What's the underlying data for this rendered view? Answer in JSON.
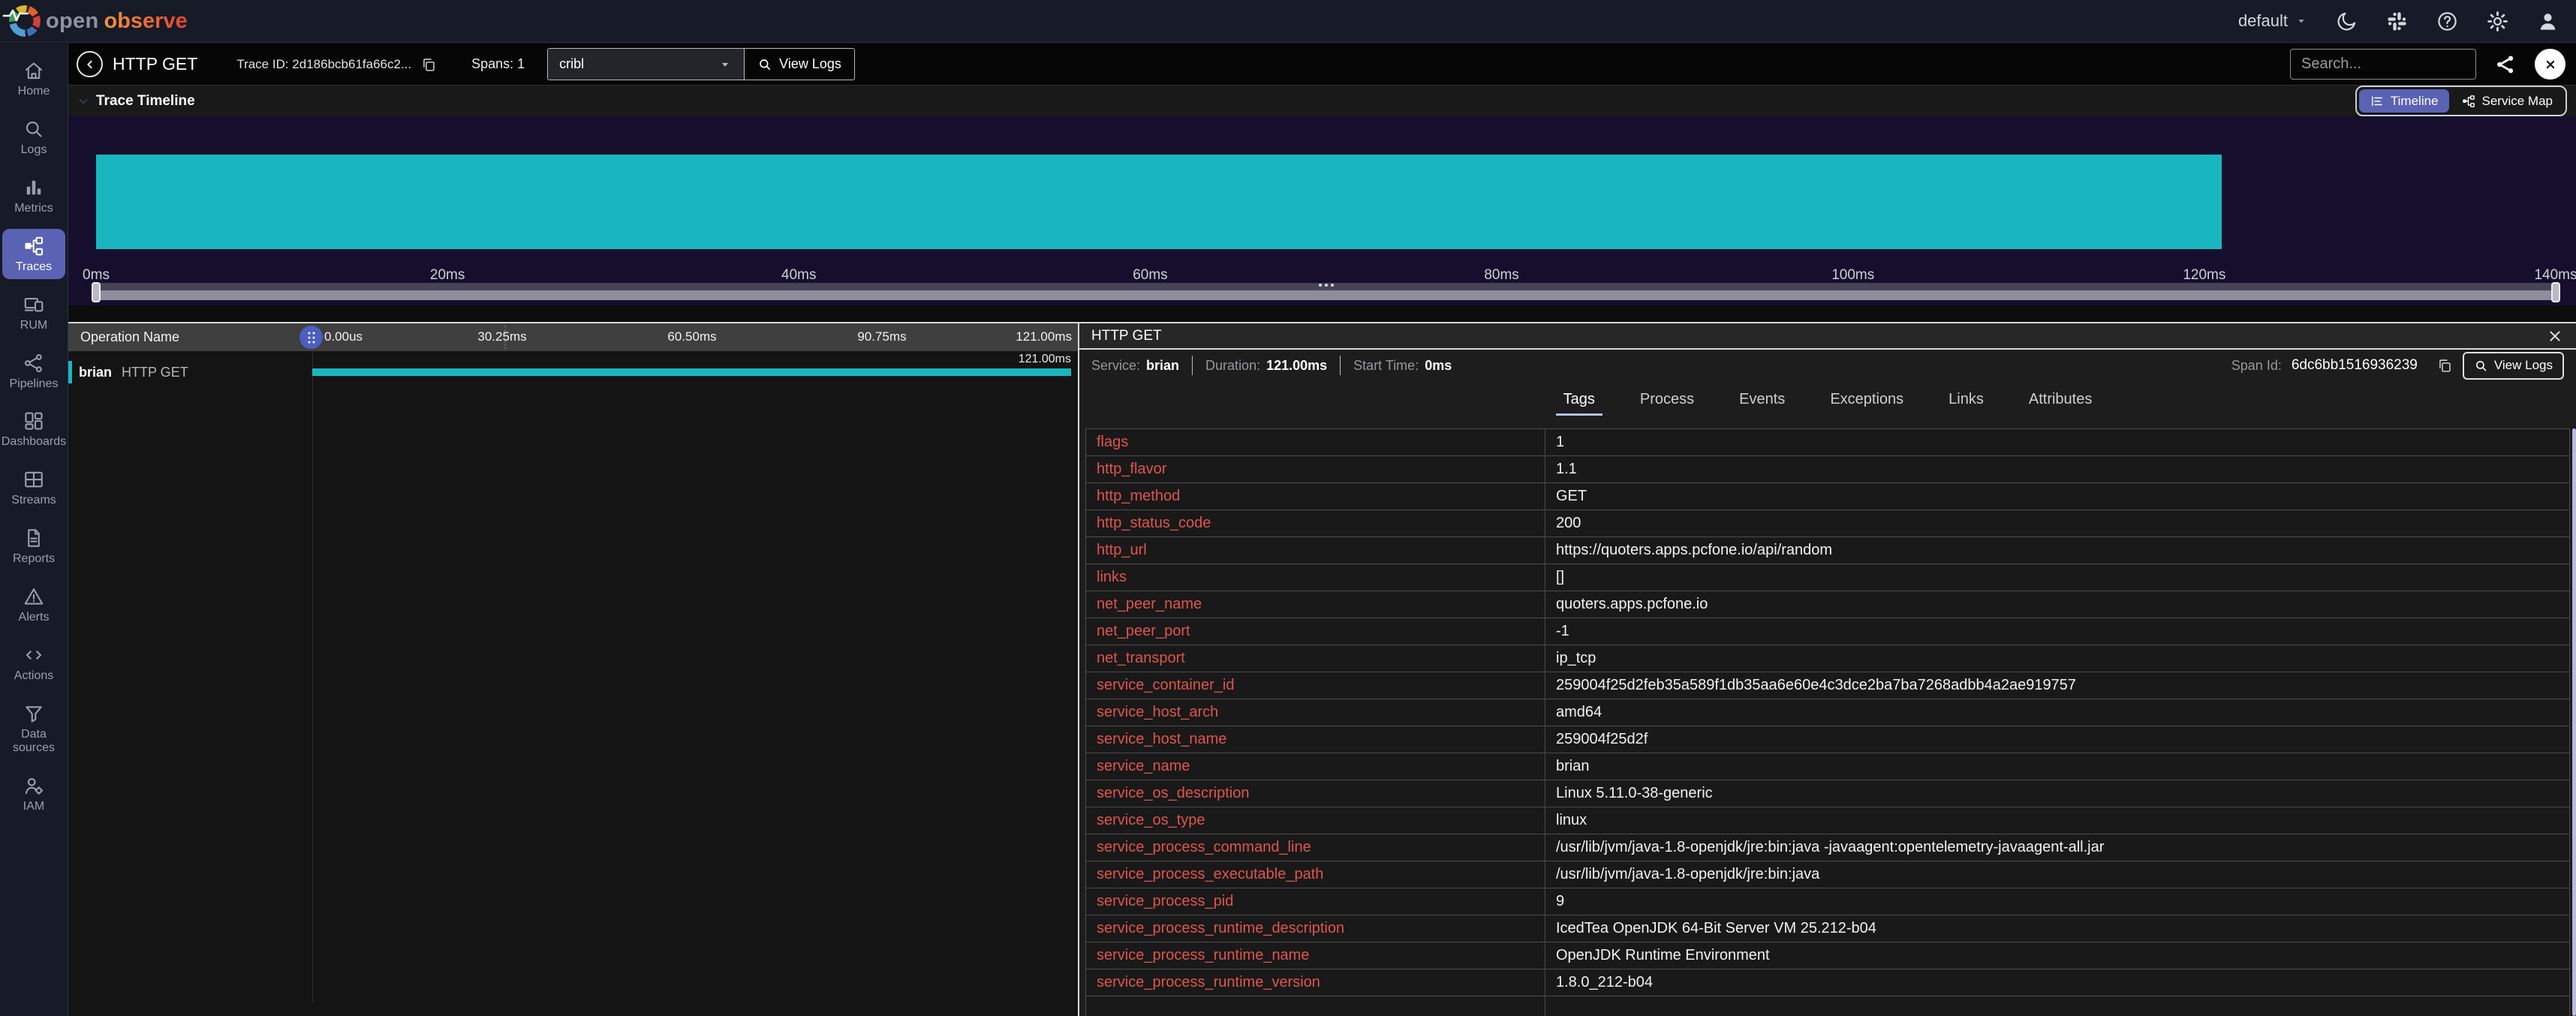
{
  "topbar": {
    "logo": {
      "open": "open",
      "observe": "observe"
    },
    "org_selector": "default",
    "icons": [
      "dark-mode-icon",
      "slack-icon",
      "help-icon",
      "settings-icon",
      "user-icon"
    ]
  },
  "sidebar": {
    "items": [
      {
        "label": "Home",
        "icon": "home-icon",
        "active": false
      },
      {
        "label": "Logs",
        "icon": "logs-icon",
        "active": false
      },
      {
        "label": "Metrics",
        "icon": "metrics-icon",
        "active": false
      },
      {
        "label": "Traces",
        "icon": "traces-icon",
        "active": true
      },
      {
        "label": "RUM",
        "icon": "rum-icon",
        "active": false
      },
      {
        "label": "Pipelines",
        "icon": "pipelines-icon",
        "active": false
      },
      {
        "label": "Dashboards",
        "icon": "dashboards-icon",
        "active": false
      },
      {
        "label": "Streams",
        "icon": "streams-icon",
        "active": false
      },
      {
        "label": "Reports",
        "icon": "reports-icon",
        "active": false
      },
      {
        "label": "Alerts",
        "icon": "alerts-icon",
        "active": false
      },
      {
        "label": "Actions",
        "icon": "actions-icon",
        "active": false
      },
      {
        "label": "Data sources",
        "icon": "data-sources-icon",
        "active": false
      },
      {
        "label": "IAM",
        "icon": "iam-icon",
        "active": false
      }
    ]
  },
  "toolbar": {
    "title": "HTTP GET",
    "trace_id": "Trace ID: 2d186bcb61fa66c2...",
    "spans": "Spans: 1",
    "stream_select_value": "cribl",
    "view_logs_label": "View Logs",
    "search_placeholder": "Search..."
  },
  "timeline": {
    "section_title": "Trace Timeline",
    "toggle": [
      {
        "label": "Timeline",
        "icon": "timeline-list-icon",
        "active": true
      },
      {
        "label": "Service Map",
        "icon": "service-map-icon",
        "active": false
      }
    ],
    "axis_ticks": [
      "0ms",
      "20ms",
      "40ms",
      "60ms",
      "80ms",
      "100ms",
      "120ms",
      "140ms"
    ]
  },
  "chart_data": {
    "type": "bar",
    "title": "Trace Timeline",
    "x_unit": "ms",
    "x_range": [
      0,
      140
    ],
    "x_ticks": [
      "0ms",
      "20ms",
      "40ms",
      "60ms",
      "80ms",
      "100ms",
      "120ms",
      "140ms"
    ],
    "spans": [
      {
        "service": "brian",
        "operation": "HTTP GET",
        "start_ms": 0,
        "duration_ms": 121,
        "color": "#1ab6c0"
      }
    ]
  },
  "waterfall": {
    "header_label": "Operation Name",
    "ticks": [
      "0.00us",
      "30.25ms",
      "60.50ms",
      "90.75ms",
      "121.00ms"
    ],
    "row": {
      "service": "brian",
      "operation": "HTTP GET",
      "duration_label": "121.00ms"
    }
  },
  "detail": {
    "title": "HTTP GET",
    "meta": [
      {
        "label": "Service:",
        "value": "brian"
      },
      {
        "label": "Duration:",
        "value": "121.00ms"
      },
      {
        "label": "Start Time:",
        "value": "0ms"
      }
    ],
    "span_id_label": "Span Id:",
    "span_id": "6dc6bb1516936239",
    "view_logs_label": "View Logs",
    "tabs": [
      "Tags",
      "Process",
      "Events",
      "Exceptions",
      "Links",
      "Attributes"
    ],
    "active_tab": "Tags",
    "tags": [
      {
        "key": "flags",
        "value": "1"
      },
      {
        "key": "http_flavor",
        "value": "1.1"
      },
      {
        "key": "http_method",
        "value": "GET"
      },
      {
        "key": "http_status_code",
        "value": "200"
      },
      {
        "key": "http_url",
        "value": "https://quoters.apps.pcfone.io/api/random"
      },
      {
        "key": "links",
        "value": "[]"
      },
      {
        "key": "net_peer_name",
        "value": "quoters.apps.pcfone.io"
      },
      {
        "key": "net_peer_port",
        "value": "-1"
      },
      {
        "key": "net_transport",
        "value": "ip_tcp"
      },
      {
        "key": "service_container_id",
        "value": "259004f25d2feb35a589f1db35aa6e60e4c3dce2ba7ba7268adbb4a2ae919757"
      },
      {
        "key": "service_host_arch",
        "value": "amd64"
      },
      {
        "key": "service_host_name",
        "value": "259004f25d2f"
      },
      {
        "key": "service_name",
        "value": "brian"
      },
      {
        "key": "service_os_description",
        "value": "Linux 5.11.0-38-generic"
      },
      {
        "key": "service_os_type",
        "value": "linux"
      },
      {
        "key": "service_process_command_line",
        "value": "/usr/lib/jvm/java-1.8-openjdk/jre:bin:java -javaagent:opentelemetry-javaagent-all.jar"
      },
      {
        "key": "service_process_executable_path",
        "value": "/usr/lib/jvm/java-1.8-openjdk/jre:bin:java"
      },
      {
        "key": "service_process_pid",
        "value": "9"
      },
      {
        "key": "service_process_runtime_description",
        "value": "IcedTea OpenJDK 64-Bit Server VM 25.212-b04"
      },
      {
        "key": "service_process_runtime_name",
        "value": "OpenJDK Runtime Environment"
      },
      {
        "key": "service_process_runtime_version",
        "value": "1.8.0_212-b04"
      }
    ]
  },
  "colors": {
    "accent": "#5a62b3",
    "span": "#1ab6c0",
    "key_red": "#e0544d"
  }
}
